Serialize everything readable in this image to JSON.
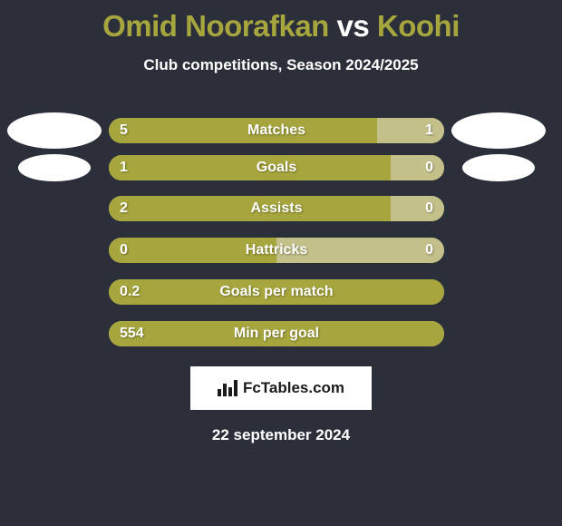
{
  "colors": {
    "page_bg": "#2a2f39",
    "accent": "#a7a63e",
    "accent_light": "#c4c08a",
    "white": "#ffffff",
    "text_shadow": "rgba(0,0,0,0.35)"
  },
  "title": {
    "player1": "Omid Noorafkan",
    "vs": "vs",
    "player2": "Koohi",
    "fontsize": 33
  },
  "subtitle": "Club competitions, Season 2024/2025",
  "date": "22 september 2024",
  "footer": {
    "brand": "FcTables.com"
  },
  "bar_style": {
    "track_color": "#c4c08a",
    "fill_color": "#a7a63e",
    "height": 28,
    "radius": 14,
    "value_fontsize": 16,
    "label_fontsize": 16
  },
  "photo_style": {
    "color": "#ffffff",
    "w1": 104,
    "h1": 40,
    "w2": 80,
    "h2": 30
  },
  "metrics": [
    {
      "label": "Matches",
      "left_text": "5",
      "right_text": "1",
      "left_pct": 80,
      "right_pct": 20,
      "photo_left": true,
      "photo_right": true,
      "photo_size": "large"
    },
    {
      "label": "Goals",
      "left_text": "1",
      "right_text": "0",
      "left_pct": 84,
      "right_pct": 16,
      "photo_left": true,
      "photo_right": true,
      "photo_size": "small"
    },
    {
      "label": "Assists",
      "left_text": "2",
      "right_text": "0",
      "left_pct": 84,
      "right_pct": 16,
      "photo_left": false,
      "photo_right": false
    },
    {
      "label": "Hattricks",
      "left_text": "0",
      "right_text": "0",
      "left_pct": 50,
      "right_pct": 50,
      "photo_left": false,
      "photo_right": false
    },
    {
      "label": "Goals per match",
      "left_text": "0.2",
      "right_text": "",
      "left_pct": 100,
      "right_pct": 0,
      "photo_left": false,
      "photo_right": false
    },
    {
      "label": "Min per goal",
      "left_text": "554",
      "right_text": "",
      "left_pct": 100,
      "right_pct": 0,
      "photo_left": false,
      "photo_right": false
    }
  ]
}
